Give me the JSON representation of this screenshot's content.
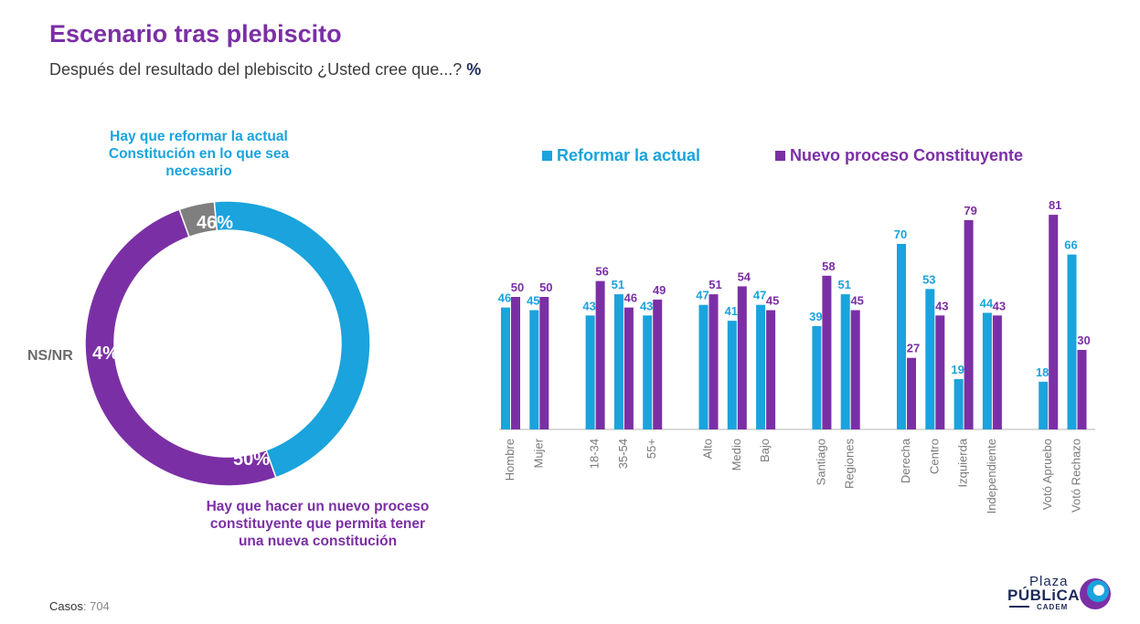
{
  "header": {
    "title": "Escenario tras plebiscito",
    "subtitle": "Después del resultado del plebiscito ¿Usted cree que...?",
    "unit": "%"
  },
  "donut": {
    "slices": [
      {
        "label": "Hay que reformar la actual Constitución en lo que sea necesario",
        "value": 46,
        "pct_text": "46%",
        "color": "#1aa3dc"
      },
      {
        "label": "Hay que hacer un nuevo proceso constituyente que permita tener una nueva constitución",
        "value": 50,
        "pct_text": "50%",
        "color": "#7b2fa5"
      },
      {
        "label": "NS/NR",
        "value": 4,
        "pct_text": "4%",
        "color": "#7f7f7f"
      }
    ]
  },
  "chart_data": [
    {
      "type": "pie",
      "categories": [
        "Hay que reformar la actual Constitución en lo que sea necesario",
        "Hay que hacer un nuevo proceso constituyente que permita tener una nueva constitución",
        "NS/NR"
      ],
      "values": [
        46,
        50,
        4
      ],
      "unit": "%"
    },
    {
      "type": "bar",
      "categories": [
        "Hombre",
        "Mujer",
        "18-34",
        "35-54",
        "55+",
        "Alto",
        "Medio",
        "Bajo",
        "Santiago",
        "Regiones",
        "Derecha",
        "Centro",
        "Izquierda",
        "Independiente",
        "Votó Apruebo",
        "Votó Rechazo"
      ],
      "groups": [
        [
          "Hombre",
          "Mujer"
        ],
        [
          "18-34",
          "35-54",
          "55+"
        ],
        [
          "Alto",
          "Medio",
          "Bajo"
        ],
        [
          "Santiago",
          "Regiones"
        ],
        [
          "Derecha",
          "Centro",
          "Izquierda",
          "Independiente"
        ],
        [
          "Votó Apruebo",
          "Votó Rechazo"
        ]
      ],
      "series": [
        {
          "name": "Reformar la actual",
          "color": "#1aa3dc",
          "values": [
            46,
            45,
            43,
            51,
            43,
            47,
            41,
            47,
            39,
            51,
            70,
            53,
            19,
            44,
            18,
            66
          ]
        },
        {
          "name": "Nuevo proceso Constituyente",
          "color": "#7b2fa5",
          "values": [
            50,
            50,
            56,
            46,
            49,
            51,
            54,
            45,
            58,
            45,
            27,
            43,
            79,
            43,
            81,
            30
          ]
        }
      ],
      "ylim": [
        0,
        85
      ],
      "legend": "top"
    }
  ],
  "footer": {
    "casos_label": "Casos",
    "casos_value": ": 704"
  },
  "logo": {
    "line1": "Plaza",
    "line2": "PÚBLiCA",
    "line3": "CADEM"
  }
}
